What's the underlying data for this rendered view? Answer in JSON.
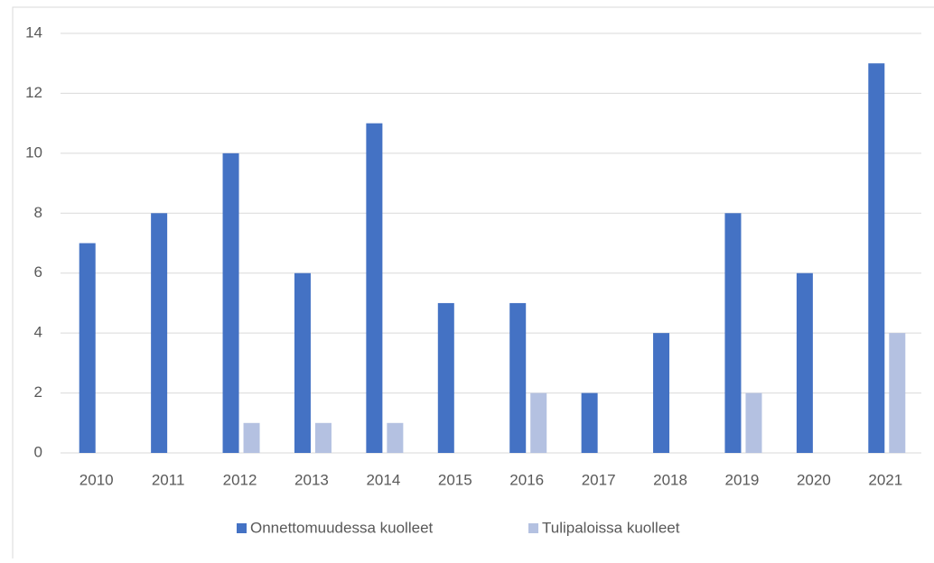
{
  "chart_data": {
    "type": "bar",
    "categories": [
      "2010",
      "2011",
      "2012",
      "2013",
      "2014",
      "2015",
      "2016",
      "2017",
      "2018",
      "2019",
      "2020",
      "2021"
    ],
    "series": [
      {
        "name": "Onnettomuudessa kuolleet",
        "color": "#4472c4",
        "values": [
          7,
          8,
          10,
          6,
          11,
          5,
          5,
          2,
          4,
          8,
          6,
          13
        ]
      },
      {
        "name": "Tulipaloissa kuolleet",
        "color": "#b4c1e1",
        "values": [
          0,
          0,
          1,
          1,
          1,
          0,
          2,
          0,
          0,
          2,
          0,
          4
        ]
      }
    ],
    "ylim": [
      0,
      14
    ],
    "yticks": [
      0,
      2,
      4,
      6,
      8,
      10,
      12,
      14
    ],
    "grid": true,
    "legend": "bottom"
  }
}
